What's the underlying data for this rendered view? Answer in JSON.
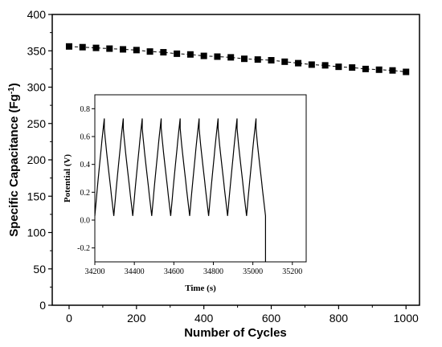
{
  "chart_data": [
    {
      "type": "line",
      "xlabel": "Number of Cycles",
      "ylabel": "Specific Capacitance (Fg",
      "ylabel_sup": "-1",
      "ylabel_close": ")",
      "xlim": [
        -50,
        1040
      ],
      "ylim": [
        0,
        400
      ],
      "x_ticks": [
        "0",
        "200",
        "400",
        "600",
        "800",
        "1000"
      ],
      "y_ticks": [
        "0",
        "50",
        "100",
        "150",
        "200",
        "250",
        "300",
        "350",
        "400"
      ],
      "series": [
        {
          "marker": "square",
          "line_style": "dashed",
          "color": "#000000",
          "x": [
            0,
            40,
            80,
            120,
            160,
            200,
            240,
            280,
            320,
            360,
            400,
            440,
            480,
            520,
            560,
            600,
            640,
            680,
            720,
            760,
            800,
            840,
            880,
            920,
            960,
            1000
          ],
          "y": [
            356,
            355,
            354,
            353,
            352,
            351,
            349,
            348,
            346,
            345,
            343,
            342,
            341,
            339,
            338,
            337,
            335,
            333,
            331,
            330,
            328,
            327,
            325,
            324,
            323,
            321
          ]
        }
      ]
    },
    {
      "type": "line",
      "xlabel": "Time (s)",
      "ylabel": "Potential (V)",
      "xlim": [
        34200,
        35270
      ],
      "ylim": [
        -0.3,
        0.9
      ],
      "x_ticks": [
        "34200",
        "34400",
        "34600",
        "34800",
        "35000",
        "35200"
      ],
      "y_ticks": [
        "-0.2",
        "0.0",
        "0.2",
        "0.4",
        "0.6",
        "0.8"
      ],
      "charge_discharge": {
        "start": 34200,
        "period": 96,
        "cycles": 9,
        "charge_time": 48,
        "discharge_time": 48,
        "v_min": 0.03,
        "v_peak": 0.73,
        "v_drop": 0.66,
        "v_cutoff": -0.3
      }
    }
  ]
}
